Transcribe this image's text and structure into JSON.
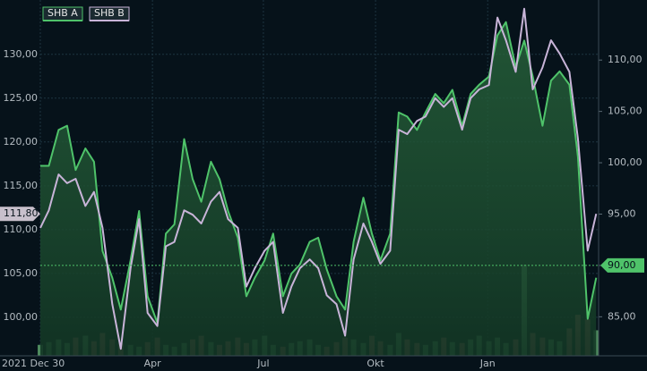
{
  "chart_data": {
    "type": "line",
    "x": [
      0,
      7,
      15,
      22,
      29,
      37,
      44,
      51,
      59,
      66,
      74,
      81,
      88,
      96,
      103,
      110,
      118,
      125,
      132,
      140,
      147,
      154,
      162,
      169,
      176,
      184,
      191,
      199,
      206,
      213,
      221,
      228,
      235,
      243,
      250,
      257,
      265,
      272,
      279,
      287,
      294,
      301,
      309,
      316,
      324,
      331,
      338,
      346,
      353,
      360,
      368,
      375,
      382,
      390,
      397,
      404,
      412,
      419,
      426,
      434,
      441,
      449,
      456
    ],
    "xlim": [
      0,
      458
    ],
    "xticks": [
      {
        "value": 0,
        "label": "2021 Dec 30"
      },
      {
        "value": 92,
        "label": "Apr"
      },
      {
        "value": 183,
        "label": "Jul"
      },
      {
        "value": 275,
        "label": "Okt"
      },
      {
        "value": 367,
        "label": "Jan"
      }
    ],
    "series": [
      {
        "name": "SHB A",
        "color": "#4fc36a",
        "axis": "y2",
        "values": [
          99.7,
          99.7,
          103.2,
          103.6,
          99.3,
          101.4,
          100.1,
          91.4,
          88.8,
          85.7,
          90.5,
          95.3,
          87.0,
          84.4,
          93.1,
          94.0,
          102.3,
          98.4,
          96.2,
          100.1,
          98.4,
          95.3,
          92.7,
          87.0,
          88.8,
          90.5,
          93.1,
          87.0,
          89.2,
          90.1,
          92.3,
          92.7,
          89.6,
          87.0,
          85.7,
          92.3,
          96.6,
          93.1,
          90.5,
          93.1,
          104.9,
          104.5,
          103.2,
          104.9,
          106.7,
          105.8,
          107.1,
          103.6,
          106.7,
          107.6,
          108.4,
          112.4,
          113.7,
          109.3,
          111.9,
          108.4,
          103.6,
          108.0,
          108.9,
          107.6,
          100.6,
          84.8,
          88.8
        ]
      },
      {
        "name": "SHB B",
        "color": "#c8b4d8",
        "values": [
          110.2,
          112.2,
          116.3,
          115.3,
          115.8,
          112.7,
          114.3,
          110.2,
          101.5,
          96.4,
          105.6,
          111.2,
          100.5,
          99.0,
          108.1,
          108.6,
          112.2,
          111.7,
          110.7,
          113.2,
          114.3,
          111.2,
          110.2,
          103.5,
          105.6,
          107.6,
          108.6,
          100.5,
          103.5,
          105.6,
          106.6,
          105.6,
          102.5,
          101.5,
          97.9,
          106.6,
          110.7,
          108.6,
          106.1,
          107.6,
          121.4,
          120.9,
          122.4,
          122.9,
          125.0,
          124.0,
          125.0,
          121.4,
          125.0,
          126.0,
          126.5,
          134.2,
          131.6,
          128.0,
          135.2,
          126.0,
          128.5,
          131.6,
          130.1,
          128.0,
          120.4,
          107.6,
          111.8
        ]
      }
    ],
    "volume": [
      12,
      15,
      18,
      14,
      20,
      22,
      16,
      25,
      18,
      14,
      12,
      10,
      15,
      20,
      12,
      10,
      14,
      18,
      22,
      15,
      12,
      16,
      20,
      14,
      18,
      22,
      12,
      10,
      14,
      16,
      18,
      12,
      10,
      15,
      20,
      18,
      14,
      22,
      16,
      12,
      25,
      18,
      14,
      12,
      16,
      20,
      15,
      14,
      18,
      22,
      16,
      20,
      14,
      18,
      100,
      25,
      20,
      18,
      16,
      30,
      45,
      40,
      28
    ],
    "vlim": [
      0,
      100
    ],
    "ylim": [
      95.6,
      136.2
    ],
    "yticks": [
      {
        "value": 100,
        "label": "100,00"
      },
      {
        "value": 105,
        "label": "105,00"
      },
      {
        "value": 110,
        "label": "110,00"
      },
      {
        "value": 115,
        "label": "115,00"
      },
      {
        "value": 120,
        "label": "120,00"
      },
      {
        "value": 125,
        "label": "125,00"
      },
      {
        "value": 130,
        "label": "130,00"
      }
    ],
    "y2lim": [
      81.2,
      115.85
    ],
    "y2ticks": [
      {
        "value": 85,
        "label": "85,00"
      },
      {
        "value": 90,
        "label": "90,00"
      },
      {
        "value": 95,
        "label": "95,00"
      },
      {
        "value": 100,
        "label": "100,00"
      },
      {
        "value": 105,
        "label": "105,00"
      },
      {
        "value": 110,
        "label": "110,00"
      }
    ],
    "annotations": [
      {
        "label": "111,80",
        "value": 111.8,
        "axis": "y"
      },
      {
        "label": "90,00",
        "value": 90,
        "axis": "y2"
      }
    ],
    "grid": true,
    "legend": "top-left"
  }
}
